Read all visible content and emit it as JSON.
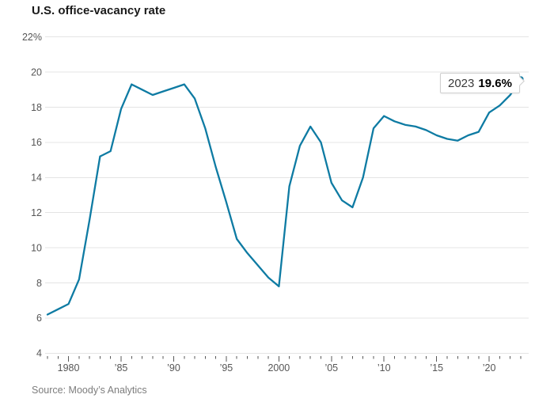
{
  "header": {
    "title": "U.S. office-vacancy rate"
  },
  "source": {
    "label": "Source: Moody’s Analytics"
  },
  "annotation": {
    "year": "2023",
    "value": "19.6%"
  },
  "colors": {
    "line": "#0e7ba3",
    "grid": "#e4e4e4",
    "axis_text": "#565656",
    "tick": "#5a5a5a",
    "title_text": "#1a1a1a",
    "source_text": "#7d7d7d",
    "callout_border": "#cfcfcf"
  },
  "chart_data": {
    "type": "line",
    "title": "U.S. office-vacancy rate",
    "x": [
      1978,
      1979,
      1980,
      1981,
      1982,
      1983,
      1984,
      1985,
      1986,
      1987,
      1988,
      1989,
      1990,
      1991,
      1992,
      1993,
      1994,
      1995,
      1996,
      1997,
      1998,
      1999,
      2000,
      2001,
      2002,
      2003,
      2004,
      2005,
      2006,
      2007,
      2008,
      2009,
      2010,
      2011,
      2012,
      2013,
      2014,
      2015,
      2016,
      2017,
      2018,
      2019,
      2020,
      2021,
      2022,
      2023
    ],
    "values": [
      6.2,
      6.5,
      6.8,
      8.2,
      11.6,
      15.2,
      15.5,
      17.9,
      19.3,
      19.0,
      18.7,
      18.9,
      19.1,
      19.3,
      18.5,
      16.8,
      14.6,
      12.6,
      10.5,
      9.7,
      9.0,
      8.3,
      7.8,
      13.5,
      15.8,
      16.9,
      16.0,
      13.7,
      12.7,
      12.3,
      14.0,
      16.8,
      17.5,
      17.2,
      17.0,
      16.9,
      16.7,
      16.4,
      16.2,
      16.1,
      16.4,
      16.6,
      17.7,
      18.1,
      18.7,
      19.6
    ],
    "xlabel": "",
    "ylabel": "",
    "y_unit": "%",
    "ylim": [
      4,
      22
    ],
    "y_tick_values": [
      4,
      6,
      8,
      10,
      12,
      14,
      16,
      18,
      20,
      22
    ],
    "y_tick_labels": [
      "4",
      "6",
      "8",
      "10",
      "12",
      "14",
      "16",
      "18",
      "20",
      "22%"
    ],
    "x_tick_labels": [
      {
        "year": 1980,
        "label": "1980"
      },
      {
        "year": 1985,
        "label": "’85"
      },
      {
        "year": 1990,
        "label": "’90"
      },
      {
        "year": 1995,
        "label": "’95"
      },
      {
        "year": 2000,
        "label": "2000"
      },
      {
        "year": 2005,
        "label": "’05"
      },
      {
        "year": 2010,
        "label": "’10"
      },
      {
        "year": 2015,
        "label": "’15"
      },
      {
        "year": 2020,
        "label": "’20"
      }
    ],
    "grid": "horizontal",
    "legend": "none",
    "annotation": {
      "year": 2023,
      "value": 19.6,
      "label": "2023 19.6%"
    },
    "source": "Source: Moody’s Analytics"
  }
}
